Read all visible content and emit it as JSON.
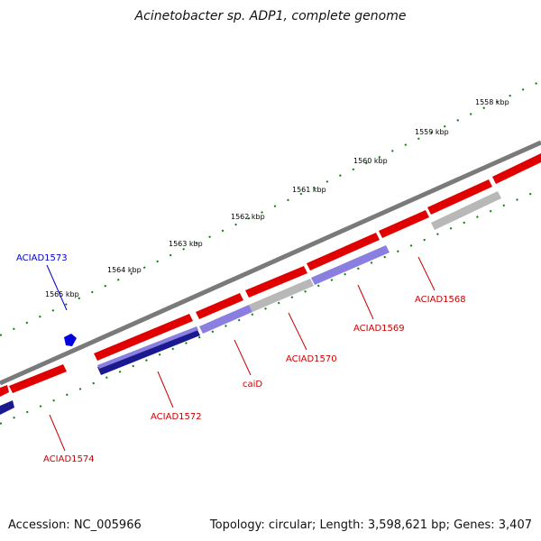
{
  "title": "Acinetobacter sp. ADP1, complete genome",
  "footer": {
    "accession": "Accession: NC_005966",
    "summary": "Topology: circular; Length: 3,598,621 bp; Genes: 3,407"
  },
  "colors": {
    "backbone": "#808080",
    "forward_gene": "#ff0000",
    "reverse_gene": "#808080",
    "ruler_ticks": "#008000",
    "label_red": "#cc0000",
    "label_blue": "#0000cc",
    "highlight_gene": "#7b68ee",
    "dark_gene": "#000080"
  },
  "ruler": {
    "labels": [
      "1558 kbp",
      "1559 kbp",
      "1560 kbp",
      "1561 kbp",
      "1562 kbp",
      "1563 kbp",
      "1564 kbp",
      "1565 kbp"
    ]
  },
  "genes": [
    {
      "label": "ACIAD1568",
      "color": "red"
    },
    {
      "label": "ACIAD1569",
      "color": "red"
    },
    {
      "label": "ACIAD1570",
      "color": "red"
    },
    {
      "label": "caiD",
      "color": "red"
    },
    {
      "label": "ACIAD1572",
      "color": "red"
    },
    {
      "label": "ACIAD1573",
      "color": "blue"
    },
    {
      "label": "ACIAD1574",
      "color": "red"
    }
  ]
}
